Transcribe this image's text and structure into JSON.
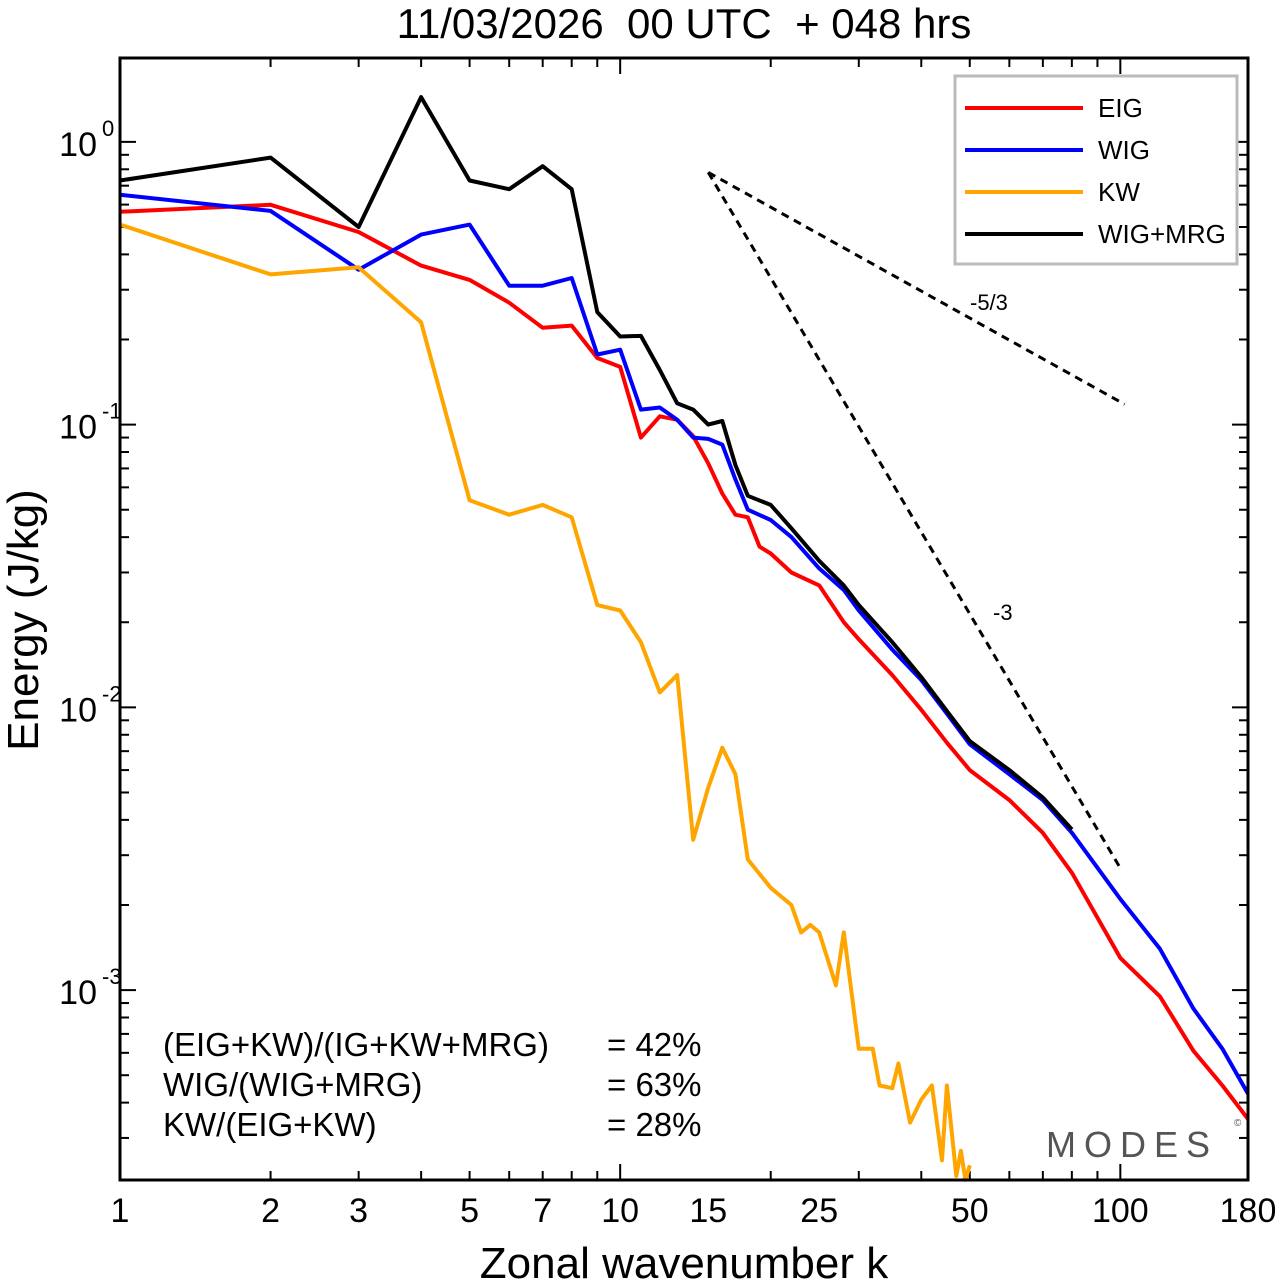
{
  "chart_data": {
    "type": "line",
    "title": "11/03/2026  00 UTC  + 048 hrs",
    "xlabel": "Zonal wavenumber k",
    "ylabel": "Energy (J/kg)",
    "xscale": "log",
    "yscale": "log",
    "xlim": [
      1,
      180
    ],
    "ylim": [
      0.000213,
      1.98
    ],
    "x_ticks": [
      1,
      2,
      3,
      5,
      7,
      10,
      15,
      25,
      50,
      100,
      180
    ],
    "y_ticks": [
      {
        "value": 1,
        "base": "10",
        "exp": "0"
      },
      {
        "value": 0.1,
        "base": "10",
        "exp": "-1"
      },
      {
        "value": 0.01,
        "base": "10",
        "exp": "-2"
      },
      {
        "value": 0.001,
        "base": "10",
        "exp": "-3"
      }
    ],
    "legend_position": "top-right",
    "series": [
      {
        "name": "EIG",
        "color": "#ff0000",
        "x": [
          1,
          2,
          3,
          4,
          5,
          6,
          7,
          8,
          9,
          10,
          11,
          12,
          13,
          14,
          15,
          16,
          17,
          18,
          19,
          20,
          22,
          25,
          28,
          30,
          35,
          40,
          45,
          50,
          60,
          70,
          80,
          100,
          120,
          140,
          160,
          180
        ],
        "y": [
          0.566,
          0.599,
          0.48,
          0.365,
          0.325,
          0.27,
          0.22,
          0.224,
          0.172,
          0.16,
          0.09,
          0.107,
          0.104,
          0.091,
          0.073,
          0.057,
          0.048,
          0.047,
          0.037,
          0.035,
          0.03,
          0.027,
          0.02,
          0.0174,
          0.013,
          0.0098,
          0.0075,
          0.006,
          0.0047,
          0.0036,
          0.0026,
          0.0013,
          0.00095,
          0.00061,
          0.00046,
          0.00035
        ]
      },
      {
        "name": "WIG",
        "color": "#0000ff",
        "x": [
          1,
          2,
          3,
          4,
          5,
          6,
          7,
          8,
          9,
          10,
          11,
          12,
          13,
          14,
          15,
          16,
          17,
          18,
          20,
          22,
          25,
          28,
          30,
          35,
          40,
          45,
          50,
          60,
          70,
          80,
          100,
          120,
          140,
          160,
          180
        ],
        "y": [
          0.65,
          0.57,
          0.353,
          0.47,
          0.51,
          0.31,
          0.31,
          0.33,
          0.177,
          0.184,
          0.113,
          0.115,
          0.104,
          0.09,
          0.089,
          0.085,
          0.064,
          0.05,
          0.046,
          0.04,
          0.031,
          0.026,
          0.022,
          0.016,
          0.0125,
          0.0095,
          0.0074,
          0.0058,
          0.0047,
          0.0036,
          0.0021,
          0.0014,
          0.00086,
          0.00062,
          0.00043
        ]
      },
      {
        "name": "KW",
        "color": "#ffa500",
        "x": [
          1,
          2,
          3,
          4,
          5,
          6,
          7,
          8,
          9,
          10,
          11,
          12,
          13,
          14,
          15,
          16,
          17,
          18,
          20,
          22,
          23,
          24,
          25,
          27,
          28,
          30,
          32,
          33,
          35,
          36,
          38,
          40,
          42,
          44,
          45,
          47,
          48,
          49,
          50
        ],
        "y": [
          0.51,
          0.34,
          0.36,
          0.23,
          0.054,
          0.048,
          0.052,
          0.047,
          0.023,
          0.022,
          0.017,
          0.0113,
          0.013,
          0.0034,
          0.0052,
          0.0072,
          0.0058,
          0.0029,
          0.0023,
          0.002,
          0.0016,
          0.0017,
          0.0016,
          0.00104,
          0.0016,
          0.00062,
          0.00062,
          0.00046,
          0.00045,
          0.00055,
          0.00034,
          0.00041,
          0.00046,
          0.00025,
          0.00046,
          0.00022,
          0.00027,
          0.00021,
          0.00024
        ]
      },
      {
        "name": "WIG+MRG",
        "color": "#000000",
        "x": [
          1,
          2,
          3,
          4,
          5,
          6,
          7,
          8,
          9,
          10,
          11,
          12,
          13,
          14,
          15,
          16,
          17,
          18,
          20,
          22,
          25,
          28,
          30,
          35,
          40,
          45,
          50,
          60,
          70,
          80
        ],
        "y": [
          0.73,
          0.88,
          0.5,
          1.44,
          0.73,
          0.68,
          0.82,
          0.68,
          0.25,
          0.205,
          0.206,
          0.156,
          0.119,
          0.113,
          0.1,
          0.103,
          0.072,
          0.056,
          0.052,
          0.043,
          0.033,
          0.027,
          0.023,
          0.017,
          0.0128,
          0.0097,
          0.0076,
          0.006,
          0.0048,
          0.0037
        ]
      }
    ],
    "reference_lines": [
      {
        "label": "-5/3",
        "x": [
          15,
          102
        ],
        "y": [
          0.78,
          0.118
        ]
      },
      {
        "label": "-3",
        "x": [
          15,
          100
        ],
        "y": [
          0.78,
          0.0027
        ]
      }
    ],
    "annotations": [
      {
        "label": "(EIG+KW)/(IG+KW+MRG)",
        "value": "= 42%"
      },
      {
        "label": "WIG/(WIG+MRG)",
        "value": "= 63%"
      },
      {
        "label": "KW/(EIG+KW)",
        "value": "= 28%"
      }
    ],
    "watermark": "MODES"
  }
}
